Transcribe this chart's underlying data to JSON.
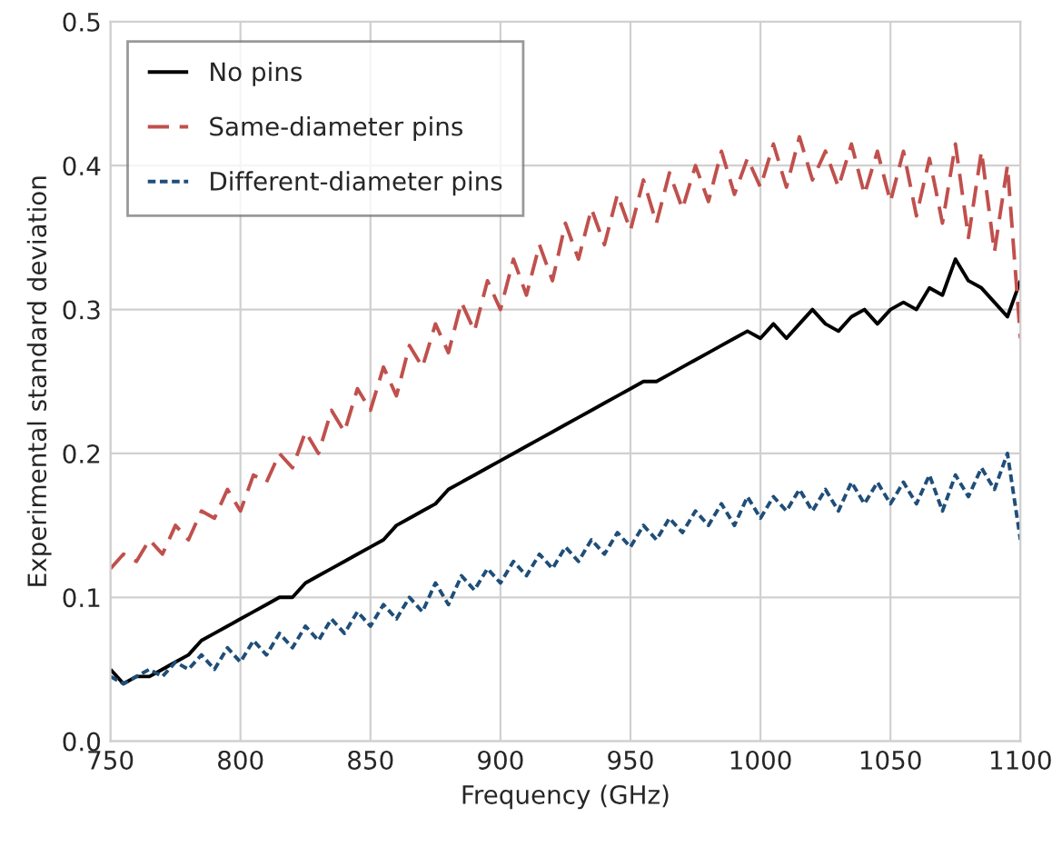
{
  "chart_data": {
    "type": "line",
    "xlabel": "Frequency (GHz)",
    "ylabel": "Experimental standard deviation",
    "x": [
      750,
      755,
      760,
      765,
      770,
      775,
      780,
      785,
      790,
      795,
      800,
      805,
      810,
      815,
      820,
      825,
      830,
      835,
      840,
      845,
      850,
      855,
      860,
      865,
      870,
      875,
      880,
      885,
      890,
      895,
      900,
      905,
      910,
      915,
      920,
      925,
      930,
      935,
      940,
      945,
      950,
      955,
      960,
      965,
      970,
      975,
      980,
      985,
      990,
      995,
      1000,
      1005,
      1010,
      1015,
      1020,
      1025,
      1030,
      1035,
      1040,
      1045,
      1050,
      1055,
      1060,
      1065,
      1070,
      1075,
      1080,
      1085,
      1090,
      1095,
      1100
    ],
    "series": [
      {
        "name": "No pins",
        "color": "#000000",
        "line_style": "solid",
        "values": [
          0.05,
          0.04,
          0.045,
          0.045,
          0.05,
          0.055,
          0.06,
          0.07,
          0.075,
          0.08,
          0.085,
          0.09,
          0.095,
          0.1,
          0.1,
          0.11,
          0.115,
          0.12,
          0.125,
          0.13,
          0.135,
          0.14,
          0.15,
          0.155,
          0.16,
          0.165,
          0.175,
          0.18,
          0.185,
          0.19,
          0.195,
          0.2,
          0.205,
          0.21,
          0.215,
          0.22,
          0.225,
          0.23,
          0.235,
          0.24,
          0.245,
          0.25,
          0.25,
          0.255,
          0.26,
          0.265,
          0.27,
          0.275,
          0.28,
          0.285,
          0.28,
          0.29,
          0.28,
          0.29,
          0.3,
          0.29,
          0.285,
          0.295,
          0.3,
          0.29,
          0.3,
          0.305,
          0.3,
          0.315,
          0.31,
          0.335,
          0.32,
          0.315,
          0.305,
          0.295,
          0.32
        ]
      },
      {
        "name": "Same-diameter pins",
        "color": "#c0504d",
        "line_style": "dashed",
        "values": [
          0.12,
          0.13,
          0.125,
          0.14,
          0.13,
          0.15,
          0.14,
          0.16,
          0.155,
          0.175,
          0.16,
          0.185,
          0.18,
          0.2,
          0.19,
          0.215,
          0.2,
          0.23,
          0.215,
          0.245,
          0.23,
          0.26,
          0.24,
          0.275,
          0.26,
          0.29,
          0.27,
          0.305,
          0.285,
          0.32,
          0.3,
          0.335,
          0.31,
          0.345,
          0.32,
          0.36,
          0.335,
          0.37,
          0.345,
          0.38,
          0.355,
          0.39,
          0.36,
          0.395,
          0.37,
          0.4,
          0.375,
          0.41,
          0.38,
          0.405,
          0.385,
          0.415,
          0.385,
          0.42,
          0.39,
          0.41,
          0.385,
          0.415,
          0.38,
          0.41,
          0.375,
          0.41,
          0.365,
          0.405,
          0.36,
          0.415,
          0.35,
          0.41,
          0.34,
          0.4,
          0.28
        ]
      },
      {
        "name": "Different-diameter pins",
        "color": "#1f4e79",
        "line_style": "dotted",
        "values": [
          0.045,
          0.04,
          0.045,
          0.05,
          0.045,
          0.055,
          0.05,
          0.06,
          0.05,
          0.065,
          0.055,
          0.07,
          0.06,
          0.075,
          0.065,
          0.08,
          0.07,
          0.085,
          0.075,
          0.09,
          0.08,
          0.095,
          0.085,
          0.1,
          0.09,
          0.11,
          0.095,
          0.115,
          0.105,
          0.12,
          0.11,
          0.125,
          0.115,
          0.13,
          0.12,
          0.135,
          0.125,
          0.14,
          0.13,
          0.145,
          0.135,
          0.15,
          0.14,
          0.155,
          0.145,
          0.16,
          0.15,
          0.165,
          0.15,
          0.17,
          0.155,
          0.17,
          0.16,
          0.175,
          0.16,
          0.175,
          0.16,
          0.18,
          0.165,
          0.18,
          0.165,
          0.18,
          0.165,
          0.185,
          0.16,
          0.185,
          0.17,
          0.19,
          0.175,
          0.2,
          0.14
        ]
      }
    ],
    "xlim": [
      750,
      1100
    ],
    "xticks": [
      750,
      800,
      850,
      900,
      950,
      1000,
      1050,
      1100
    ],
    "ylim": [
      0,
      0.5
    ],
    "yticks": [
      {
        "value": 0,
        "label": "0.0"
      },
      0.1,
      0.2,
      0.3,
      0.4,
      0.5
    ],
    "grid": true,
    "legend": "top left"
  }
}
